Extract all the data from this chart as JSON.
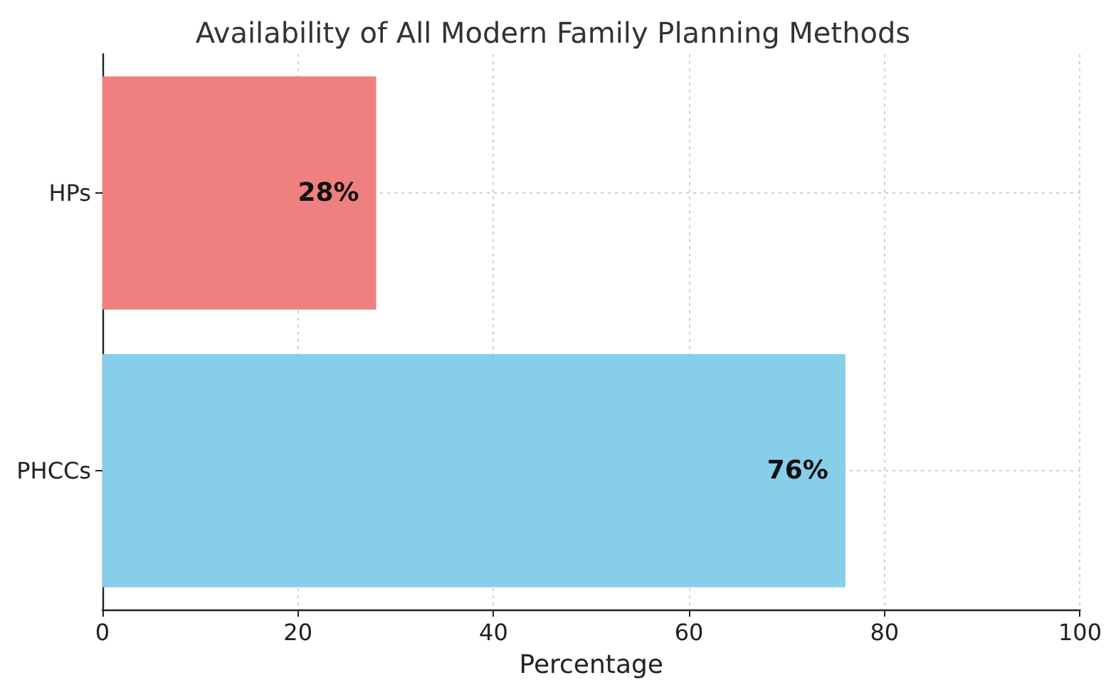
{
  "chart_data": {
    "type": "bar",
    "orientation": "horizontal",
    "title": "Availability of All Modern Family Planning Methods",
    "xlabel": "Percentage",
    "categories": [
      "HPs",
      "PHCCs"
    ],
    "values": [
      28,
      76
    ],
    "colors": [
      "#f08080",
      "#87ceeb"
    ],
    "value_labels": [
      "28%",
      "76%"
    ],
    "xlim": [
      0,
      100
    ],
    "xticks": [
      0,
      20,
      40,
      60,
      80,
      100
    ],
    "grid": true
  }
}
